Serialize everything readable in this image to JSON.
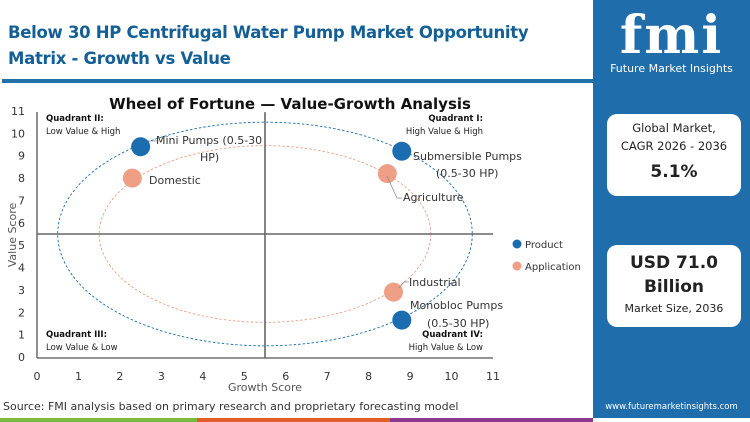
{
  "header": {
    "title": "Below 30 HP Centrifugal Water Pump Market  Opportunity Matrix - Growth vs Value"
  },
  "sidebar": {
    "logo_text": "fmi",
    "logo_subtitle": "Future Market Insights",
    "cagr_label_1": "Global Market,",
    "cagr_label_2": "CAGR 2026 - 2036",
    "cagr_value": "5.1%",
    "size_value_1": "USD 71.0",
    "size_value_2": "Billion",
    "size_label": "Market Size, 2036",
    "url": "www.futuremarketinsights.com"
  },
  "footer": {
    "source": "Source: FMI analysis based on primary research and proprietary forecasting model"
  },
  "colors": {
    "brand": "#1f6dab",
    "product": "#1b6db0",
    "application": "#ee9f85",
    "stripe": [
      "#7db83f",
      "#e35d2b",
      "#8a3a8f"
    ]
  },
  "chart_data": {
    "type": "scatter",
    "title": "Wheel of Fortune — Value-Growth  Analysis",
    "xlabel": "Growth Score",
    "ylabel": "Value Score",
    "xlim": [
      0,
      11
    ],
    "ylim": [
      0,
      11
    ],
    "xticks": [
      "0",
      "1",
      "2",
      "3",
      "4",
      "5",
      "6",
      "7",
      "8",
      "9",
      "10",
      "11"
    ],
    "yticks": [
      "0",
      "1",
      "2",
      "3",
      "4",
      "5",
      "6",
      "7",
      "8",
      "9",
      "10",
      "11"
    ],
    "divider": {
      "x": 5.5,
      "y": 5.5
    },
    "legend": {
      "position": "right",
      "items": [
        "Product",
        "Application"
      ]
    },
    "quadrants": [
      {
        "title": "Quadrant I:",
        "desc": "High Value & High"
      },
      {
        "title": "Quadrant II:",
        "desc": "Low Value & High"
      },
      {
        "title": "Quadrant III:",
        "desc": "Low Value & Low"
      },
      {
        "title": "Quadrant IV:",
        "desc": "High Value & Low"
      }
    ],
    "rings": [
      {
        "series": "Product",
        "cx": 5.5,
        "cy": 5.5,
        "rx": 5,
        "ry": 5
      },
      {
        "series": "Application",
        "cx": 5.5,
        "cy": 5.5,
        "rx": 4,
        "ry": 3.95
      }
    ],
    "series": [
      {
        "name": "Product",
        "points": [
          {
            "label": "Mini Pumps (0.5-30 HP)",
            "x": 2.5,
            "y": 9.4
          },
          {
            "label": "Submersible Pumps (0.5-30 HP)",
            "x": 8.8,
            "y": 9.2
          },
          {
            "label": "Monobloc Pumps (0.5-30 HP)",
            "x": 8.8,
            "y": 1.65
          }
        ]
      },
      {
        "name": "Application",
        "points": [
          {
            "label": "Domestic",
            "x": 2.3,
            "y": 8.0
          },
          {
            "label": "Agriculture",
            "x": 8.45,
            "y": 8.2
          },
          {
            "label": "Industrial",
            "x": 8.6,
            "y": 2.9
          }
        ]
      }
    ]
  }
}
